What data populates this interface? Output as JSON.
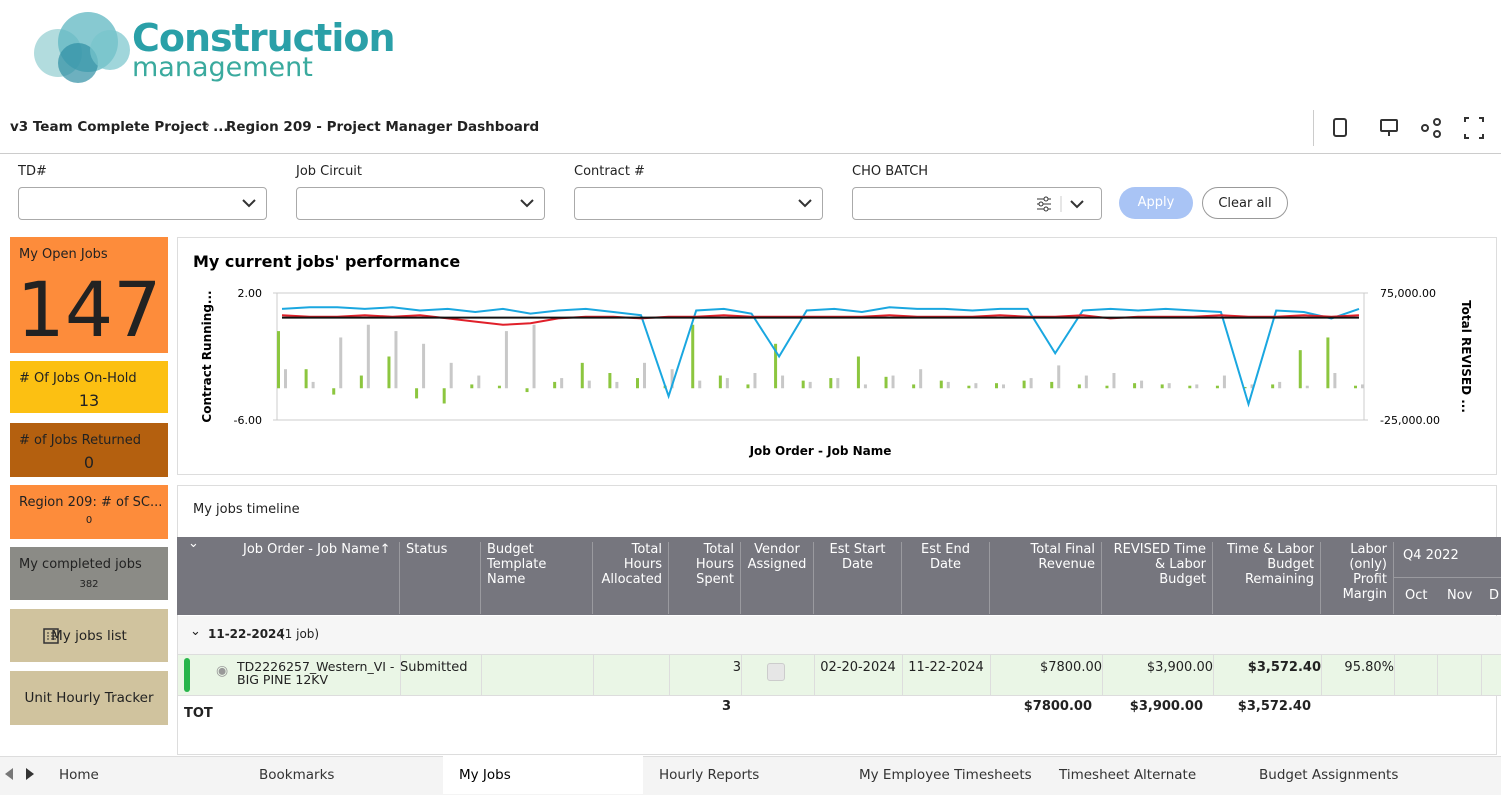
{
  "logo": {
    "word1": "Construction",
    "word2": "management"
  },
  "breadcrumb": [
    "v3 Team Complete Project ...",
    "Region 209 - Project Manager Dashboard"
  ],
  "filters": [
    "TD#",
    "Job Circuit",
    "Contract #",
    "CHO BATCH"
  ],
  "buttons": {
    "apply": "Apply",
    "clear": "Clear all"
  },
  "tiles": [
    {
      "label": "My Open Jobs",
      "value": 147
    },
    {
      "label": "# Of Jobs On-Hold",
      "value": 13
    },
    {
      "label": "# of Jobs Returned",
      "value": 0
    },
    {
      "label": "Region 209: # of SC...",
      "value": 0
    },
    {
      "label": "My completed jobs",
      "value": 382
    },
    {
      "label": "My jobs list"
    },
    {
      "label": "Unit Hourly Tracker"
    }
  ],
  "chart_data": {
    "type": "combo",
    "title": "My current jobs' performance",
    "y_label": "Contract Running...",
    "y2_label": "Total REVISED ...",
    "x_label": "Job Order - Job Name",
    "ylim": [
      -6,
      2
    ],
    "yticks": [
      {
        "value": 2,
        "label": "2.00"
      },
      {
        "value": -6,
        "label": "-6.00"
      }
    ],
    "y2lim": [
      -25000,
      75000
    ],
    "y2ticks": [
      {
        "value": 75000,
        "label": "75,000.00"
      },
      {
        "value": -25000,
        "label": "-25,000.00"
      }
    ],
    "series": [
      {
        "kind": "line",
        "color": "#1aa7e0",
        "values": [
          1.0,
          1.1,
          1.1,
          1.0,
          1.1,
          0.9,
          1.0,
          0.8,
          1.0,
          0.7,
          0.9,
          1.0,
          0.8,
          0.6,
          -4.5,
          0.9,
          1.0,
          0.7,
          -2.0,
          0.9,
          1.0,
          0.8,
          1.1,
          1.0,
          1.0,
          0.9,
          1.0,
          1.0,
          -1.8,
          0.9,
          1.0,
          0.9,
          1.0,
          0.9,
          0.8,
          -5.0,
          0.9,
          0.8,
          0.4,
          1.0
        ]
      },
      {
        "kind": "line",
        "color": "#e0202a",
        "values": [
          0.6,
          0.5,
          0.5,
          0.6,
          0.5,
          0.6,
          0.4,
          0.2,
          0.0,
          0.1,
          0.4,
          0.5,
          0.5,
          0.4,
          0.5,
          0.5,
          0.6,
          0.5,
          0.5,
          0.5,
          0.5,
          0.5,
          0.6,
          0.5,
          0.5,
          0.5,
          0.6,
          0.5,
          0.5,
          0.6,
          0.4,
          0.5,
          0.5,
          0.5,
          0.6,
          0.5,
          0.5,
          0.6,
          0.5,
          0.6
        ]
      },
      {
        "kind": "line",
        "color": "#111111",
        "values": [
          0.45,
          0.45,
          0.45,
          0.45,
          0.45,
          0.45,
          0.45,
          0.45,
          0.45,
          0.45,
          0.45,
          0.45,
          0.45,
          0.45,
          0.45,
          0.45,
          0.45,
          0.45,
          0.45,
          0.45,
          0.45,
          0.45,
          0.45,
          0.45,
          0.45,
          0.45,
          0.45,
          0.45,
          0.45,
          0.45,
          0.45,
          0.45,
          0.45,
          0.45,
          0.45,
          0.45,
          0.45,
          0.45,
          0.45,
          0.45
        ]
      },
      {
        "kind": "bar",
        "axis": "y2",
        "color": "#8cc63f",
        "values": [
          45000,
          15000,
          -5000,
          10000,
          25000,
          -8000,
          -12000,
          3000,
          2000,
          -3000,
          5000,
          20000,
          12000,
          8000,
          2000,
          50000,
          10000,
          3000,
          35000,
          6000,
          8000,
          25000,
          9000,
          3000,
          6000,
          2000,
          4000,
          6000,
          5000,
          3000,
          2000,
          4000,
          3000,
          2000,
          2000,
          1000,
          3000,
          30000,
          40000,
          2000
        ]
      },
      {
        "kind": "bar",
        "axis": "y2",
        "color": "#c8c8c8",
        "values": [
          15000,
          5000,
          40000,
          50000,
          45000,
          35000,
          20000,
          10000,
          45000,
          50000,
          8000,
          6000,
          5000,
          20000,
          15000,
          6000,
          8000,
          12000,
          10000,
          5000,
          8000,
          3000,
          10000,
          15000,
          5000,
          4000,
          3000,
          8000,
          18000,
          10000,
          12000,
          6000,
          4000,
          3000,
          10000,
          3000,
          5000,
          2000,
          12000,
          3000
        ]
      }
    ]
  },
  "timeline": {
    "title": "My jobs timeline",
    "columns": [
      "Job Order -  Job Name↑",
      "Status",
      "Budget Template Name",
      "Total Hours Allocated",
      "Total Hours Spent",
      "Vendor Assigned",
      "Est Start Date",
      "Est End Date",
      "Total Final Revenue",
      "REVISED Time & Labor Budget",
      "Time & Labor Budget Remaining",
      "Labor (only) Profit Margin"
    ],
    "quarter": "Q4 2022",
    "months": [
      "Oct",
      "Nov",
      "D"
    ],
    "group": {
      "date": "11-22-2024",
      "count": "(1 job)"
    },
    "row": [
      "TD2226257_Western_VI - BIG PINE 12KV",
      "Submitted",
      null,
      null,
      3,
      null,
      "02-20-2024",
      "11-22-2024",
      "$7800.00",
      "$3,900.00",
      "$3,572.40",
      "95.80%"
    ],
    "total": [
      "TOT",
      null,
      null,
      null,
      3,
      null,
      null,
      null,
      "$7800.00",
      "$3,900.00",
      "$3,572.40",
      null
    ]
  },
  "tabs": [
    "Home",
    "Bookmarks",
    "My Jobs",
    "Hourly Reports",
    "My Employee Timesheets",
    "Timesheet Alternate",
    "Budget Assignments"
  ]
}
